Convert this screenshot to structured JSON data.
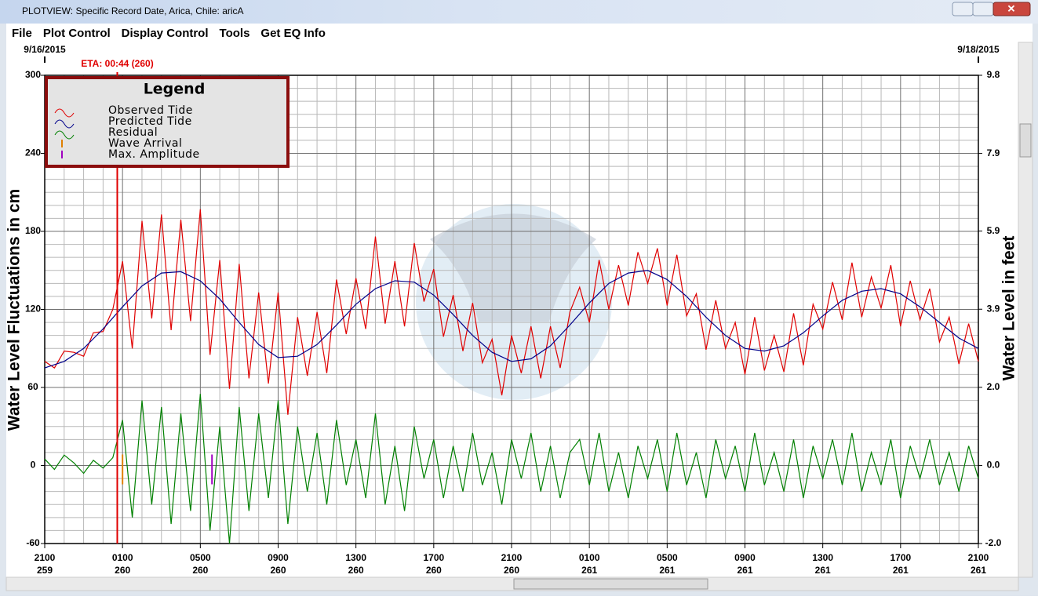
{
  "window": {
    "title": "PLOTVIEW: Specific Record Date, Arica, Chile: aricA"
  },
  "menu": [
    "File",
    "Plot Control",
    "Display Control",
    "Tools",
    "Get EQ Info"
  ],
  "chart_data": {
    "type": "line",
    "ylabel": "Water Level Fluctuations in cm",
    "y2label": "Water Level in feet",
    "legend_title": "Legend",
    "legend": "top-left",
    "grid": true,
    "xlim": [
      0,
      48
    ],
    "xticks": [
      {
        "value": 0,
        "label": "2100\n259"
      },
      {
        "value": 4,
        "label": "0100\n260"
      },
      {
        "value": 8,
        "label": "0500\n260"
      },
      {
        "value": 12,
        "label": "0900\n260"
      },
      {
        "value": 16,
        "label": "1300\n260"
      },
      {
        "value": 20,
        "label": "1700\n260"
      },
      {
        "value": 24,
        "label": "2100\n260"
      },
      {
        "value": 28,
        "label": "0100\n261"
      },
      {
        "value": 32,
        "label": "0500\n261"
      },
      {
        "value": 36,
        "label": "0900\n261"
      },
      {
        "value": 40,
        "label": "1300\n261"
      },
      {
        "value": 44,
        "label": "1700\n261"
      },
      {
        "value": 48,
        "label": "2100\n261"
      }
    ],
    "date_labels": [
      {
        "value": 0,
        "label": "9/16/2015"
      },
      {
        "value": 48,
        "label": "9/18/2015"
      }
    ],
    "ylim": [
      -60,
      300
    ],
    "yticks": [
      -60,
      0,
      60,
      120,
      180,
      240,
      300
    ],
    "y2lim": [
      -1.97,
      9.84
    ],
    "y2ticks": [
      {
        "value": -1.97,
        "label": "-2.0"
      },
      {
        "value": 0,
        "label": "0.0"
      },
      {
        "value": 1.97,
        "label": "2.0"
      },
      {
        "value": 3.94,
        "label": "3.9"
      },
      {
        "value": 5.91,
        "label": "5.9"
      },
      {
        "value": 7.87,
        "label": "7.9"
      },
      {
        "value": 9.84,
        "label": "9.8"
      }
    ],
    "series": [
      {
        "name": "Observed Tide",
        "color": "#e00000",
        "x": [
          0,
          0.5,
          1,
          1.5,
          2,
          2.5,
          3,
          3.5,
          4,
          4.5,
          5,
          5.5,
          6,
          6.5,
          7,
          7.5,
          8,
          8.5,
          9,
          9.5,
          10,
          10.5,
          11,
          11.5,
          12,
          12.5,
          13,
          13.5,
          14,
          14.5,
          15,
          15.5,
          16,
          16.5,
          17,
          17.5,
          18,
          18.5,
          19,
          19.5,
          20,
          20.5,
          21,
          21.5,
          22,
          22.5,
          23,
          23.5,
          24,
          24.5,
          25,
          25.5,
          26,
          26.5,
          27,
          27.5,
          28,
          28.5,
          29,
          29.5,
          30,
          30.5,
          31,
          31.5,
          32,
          32.5,
          33,
          33.5,
          34,
          34.5,
          35,
          35.5,
          36,
          36.5,
          37,
          37.5,
          38,
          38.5,
          39,
          39.5,
          40,
          40.5,
          41,
          41.5,
          42,
          42.5,
          43,
          43.5,
          44,
          44.5,
          45,
          45.5,
          46,
          46.5,
          47,
          47.5,
          48
        ],
        "values": [
          80,
          75,
          88,
          87,
          84,
          102,
          103,
          120,
          157,
          90,
          188,
          113,
          193,
          104,
          189,
          111,
          197,
          85,
          158,
          59,
          155,
          67,
          133,
          63,
          133,
          39,
          114,
          69,
          118,
          71,
          143,
          101,
          144,
          105,
          176,
          109,
          157,
          107,
          171,
          126,
          151,
          99,
          131,
          88,
          125,
          79,
          97,
          54,
          100,
          71,
          107,
          67,
          107,
          75,
          118,
          137,
          110,
          158,
          120,
          154,
          123,
          164,
          140,
          167,
          123,
          162,
          115,
          132,
          89,
          127,
          90,
          110,
          70,
          114,
          73,
          100,
          72,
          117,
          77,
          124,
          105,
          141,
          112,
          156,
          114,
          145,
          121,
          154,
          107,
          142,
          112,
          136,
          95,
          114,
          78,
          109,
          80
        ]
      },
      {
        "name": "Predicted Tide",
        "color": "#00008b",
        "x": [
          0,
          1,
          2,
          3,
          4,
          5,
          6,
          7,
          8,
          9,
          10,
          11,
          12,
          13,
          14,
          15,
          16,
          17,
          18,
          19,
          20,
          21,
          22,
          23,
          24,
          25,
          26,
          27,
          28,
          29,
          30,
          31,
          32,
          33,
          34,
          35,
          36,
          37,
          38,
          39,
          40,
          41,
          42,
          43,
          44,
          45,
          46,
          47,
          48
        ],
        "values": [
          75,
          80,
          90,
          105,
          122,
          138,
          148,
          149,
          142,
          128,
          110,
          93,
          83,
          84,
          93,
          108,
          124,
          136,
          142,
          141,
          131,
          116,
          100,
          87,
          80,
          82,
          92,
          108,
          125,
          140,
          148,
          150,
          143,
          130,
          114,
          100,
          90,
          88,
          92,
          102,
          115,
          127,
          134,
          136,
          132,
          122,
          110,
          98,
          90
        ]
      },
      {
        "name": "Residual",
        "color": "#008000",
        "x": [
          0,
          0.5,
          1,
          1.5,
          2,
          2.5,
          3,
          3.5,
          4,
          4.5,
          5,
          5.5,
          6,
          6.5,
          7,
          7.5,
          8,
          8.5,
          9,
          9.5,
          10,
          10.5,
          11,
          11.5,
          12,
          12.5,
          13,
          13.5,
          14,
          14.5,
          15,
          15.5,
          16,
          16.5,
          17,
          17.5,
          18,
          18.5,
          19,
          19.5,
          20,
          20.5,
          21,
          21.5,
          22,
          22.5,
          23,
          23.5,
          24,
          24.5,
          25,
          25.5,
          26,
          26.5,
          27,
          27.5,
          28,
          28.5,
          29,
          29.5,
          30,
          30.5,
          31,
          31.5,
          32,
          32.5,
          33,
          33.5,
          34,
          34.5,
          35,
          35.5,
          36,
          36.5,
          37,
          37.5,
          38,
          38.5,
          39,
          39.5,
          40,
          40.5,
          41,
          41.5,
          42,
          42.5,
          43,
          43.5,
          44,
          44.5,
          45,
          45.5,
          46,
          46.5,
          47,
          47.5,
          48
        ],
        "values": [
          5,
          -3,
          8,
          2,
          -6,
          4,
          -2,
          6,
          35,
          -40,
          50,
          -30,
          45,
          -45,
          40,
          -35,
          55,
          -50,
          30,
          -60,
          45,
          -35,
          40,
          -25,
          50,
          -45,
          30,
          -20,
          25,
          -30,
          35,
          -15,
          20,
          -25,
          40,
          -30,
          15,
          -35,
          30,
          -10,
          20,
          -25,
          15,
          -20,
          25,
          -15,
          10,
          -30,
          20,
          -10,
          25,
          -20,
          15,
          -25,
          10,
          20,
          -15,
          25,
          -20,
          10,
          -25,
          15,
          -10,
          20,
          -20,
          25,
          -15,
          10,
          -25,
          20,
          -10,
          15,
          -20,
          25,
          -15,
          10,
          -20,
          20,
          -25,
          15,
          -10,
          20,
          -15,
          25,
          -20,
          10,
          -15,
          20,
          -25,
          15,
          -10,
          20,
          -15,
          10,
          -20,
          15,
          -10
        ]
      }
    ],
    "markers": [
      {
        "name": "Wave Arrival",
        "color": "#e08000",
        "x": 4
      },
      {
        "name": "Max. Amplitude",
        "color": "#a000c0",
        "x": 8.6
      }
    ],
    "eta": {
      "label": "ETA: 00:44 (260)",
      "color": "#e00000",
      "x": 3.73
    }
  }
}
